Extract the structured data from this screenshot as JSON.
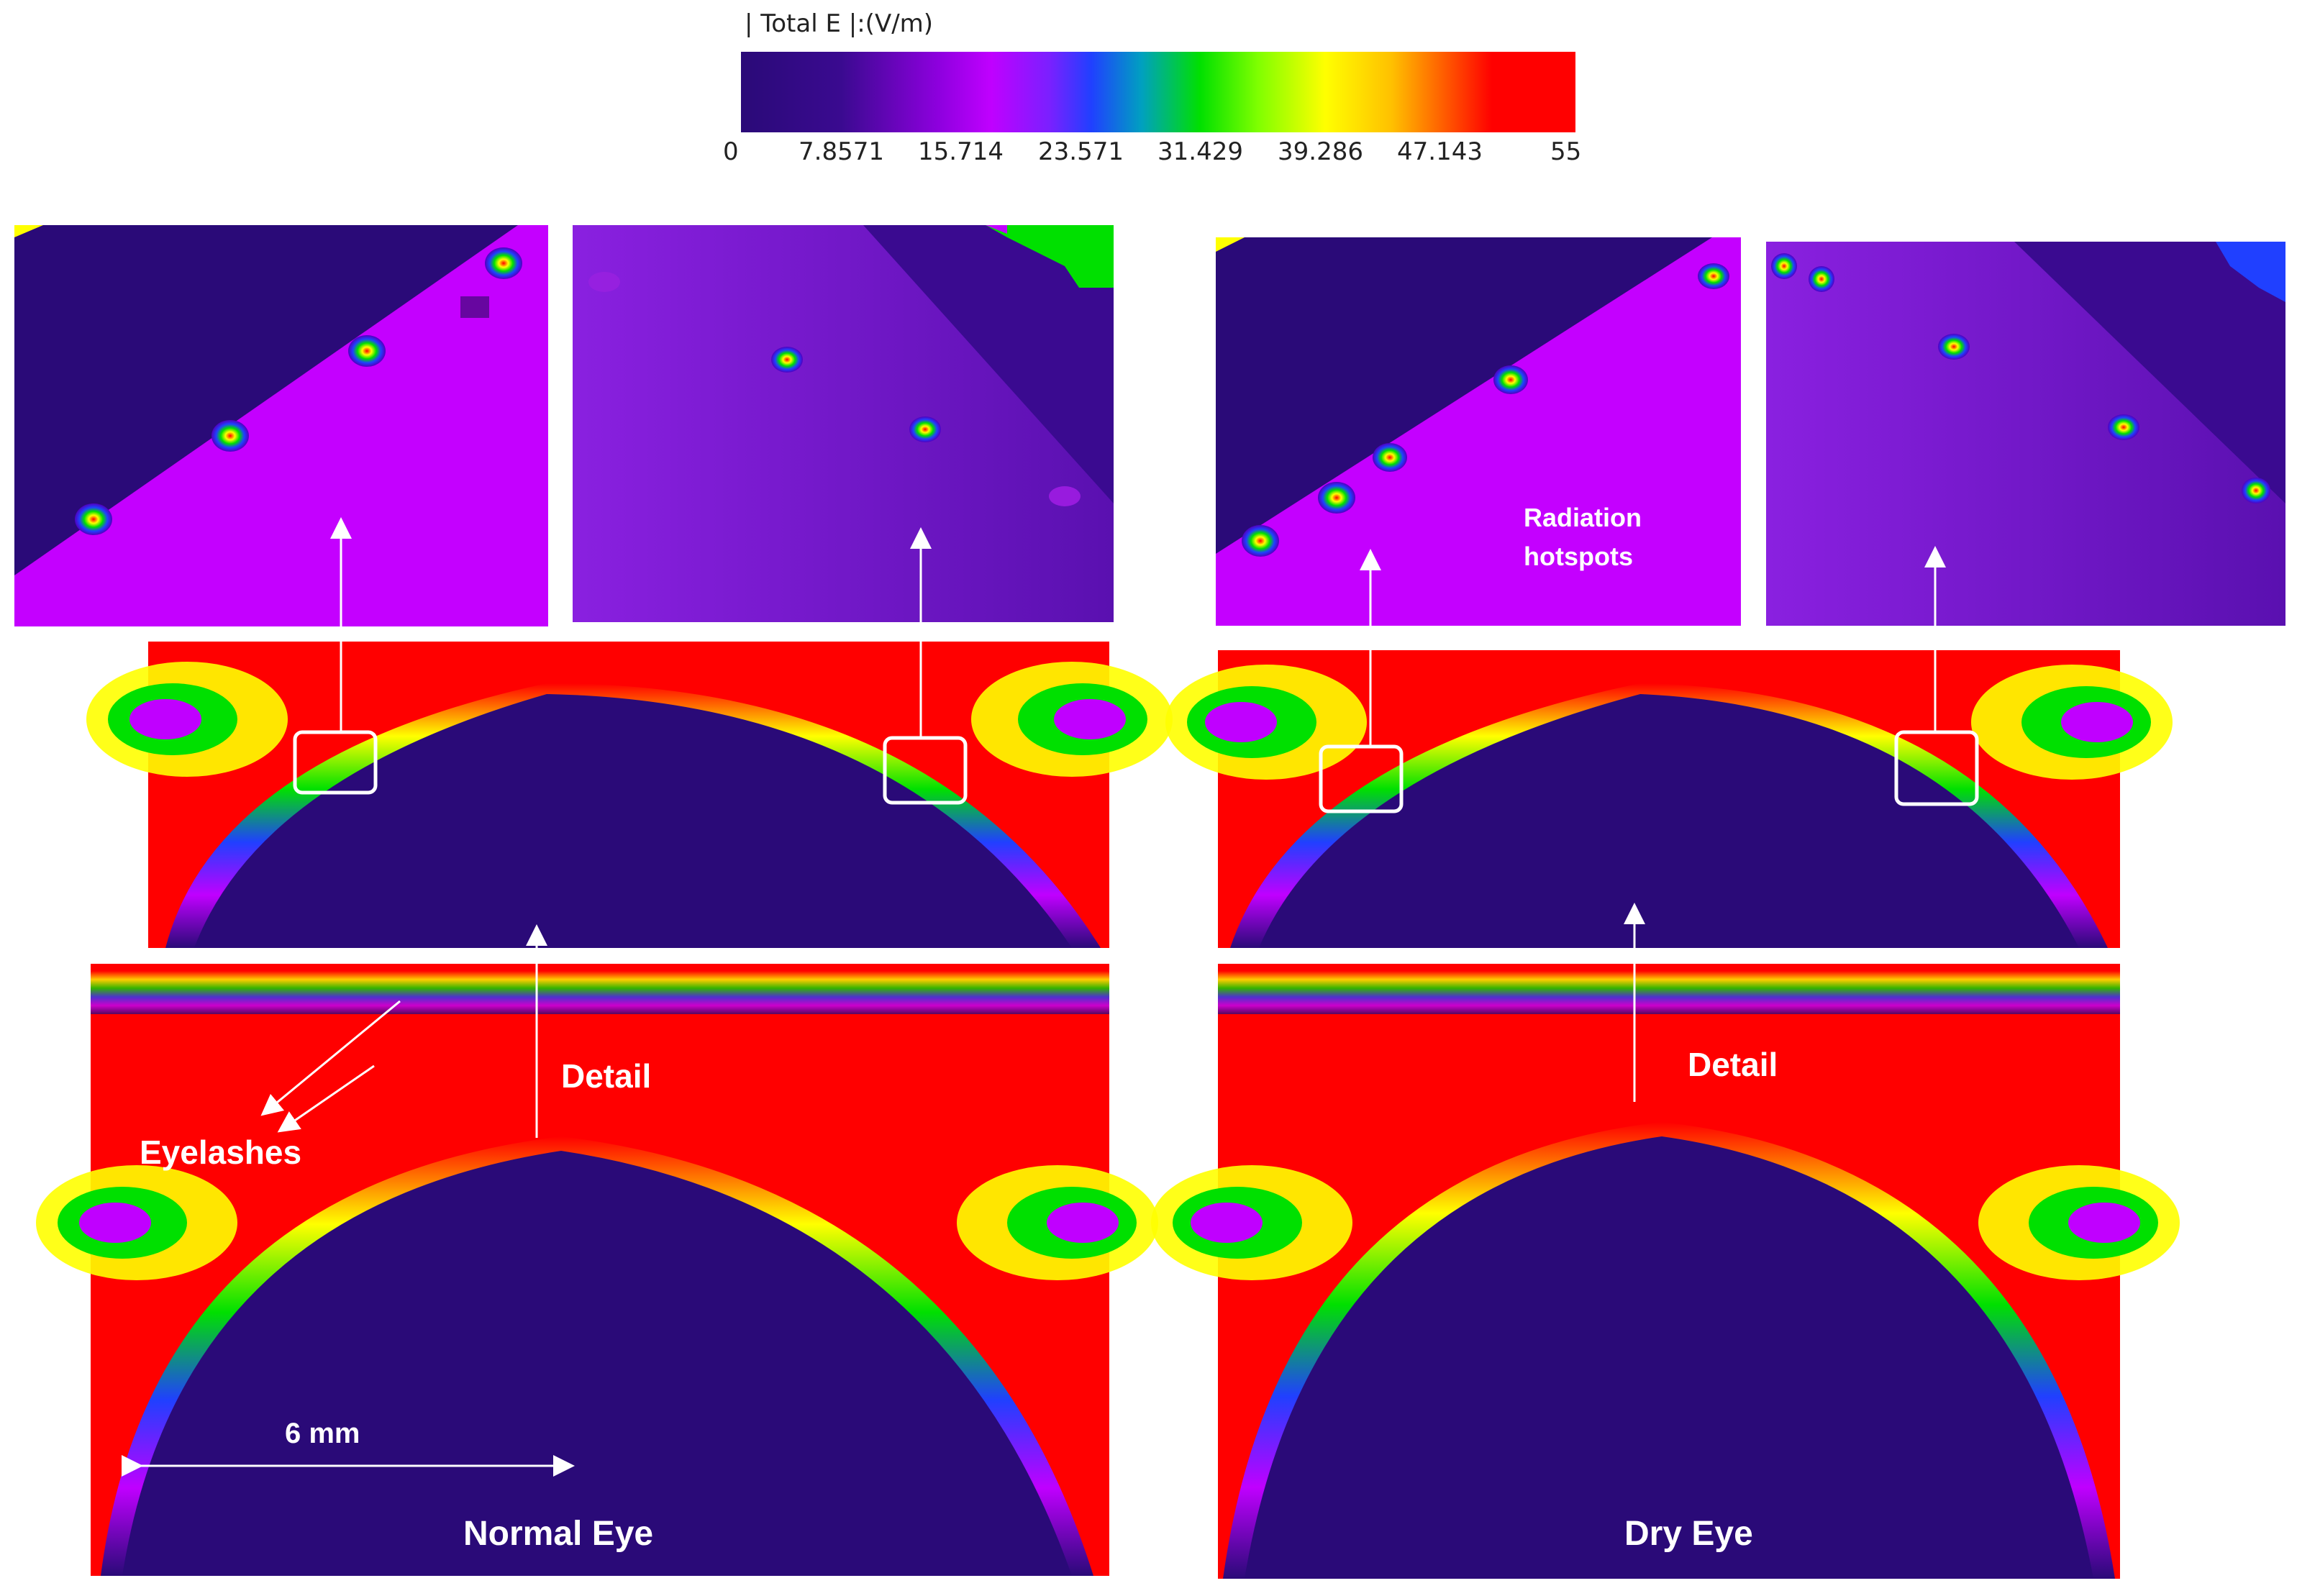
{
  "colorbar": {
    "title": "| Total E |:(V/m)",
    "ticks": [
      "0",
      "7.8571",
      "15.714",
      "23.571",
      "31.429",
      "39.286",
      "47.143",
      "55"
    ]
  },
  "panels": {
    "normal_eye": {
      "title": "Normal Eye",
      "detail_label": "Detail",
      "eyelashes_label": "Eyelashes",
      "scale_label": "6 mm"
    },
    "dry_eye": {
      "title": "Dry Eye",
      "detail_label": "Detail",
      "hotspots_label_line1": "Radiation",
      "hotspots_label_line2": "hotspots"
    }
  },
  "colors": {
    "field_high": "#ff0000",
    "field_low": "#2a0a78",
    "tissue_mid": "#c000ff",
    "arrow": "#ffffff"
  }
}
